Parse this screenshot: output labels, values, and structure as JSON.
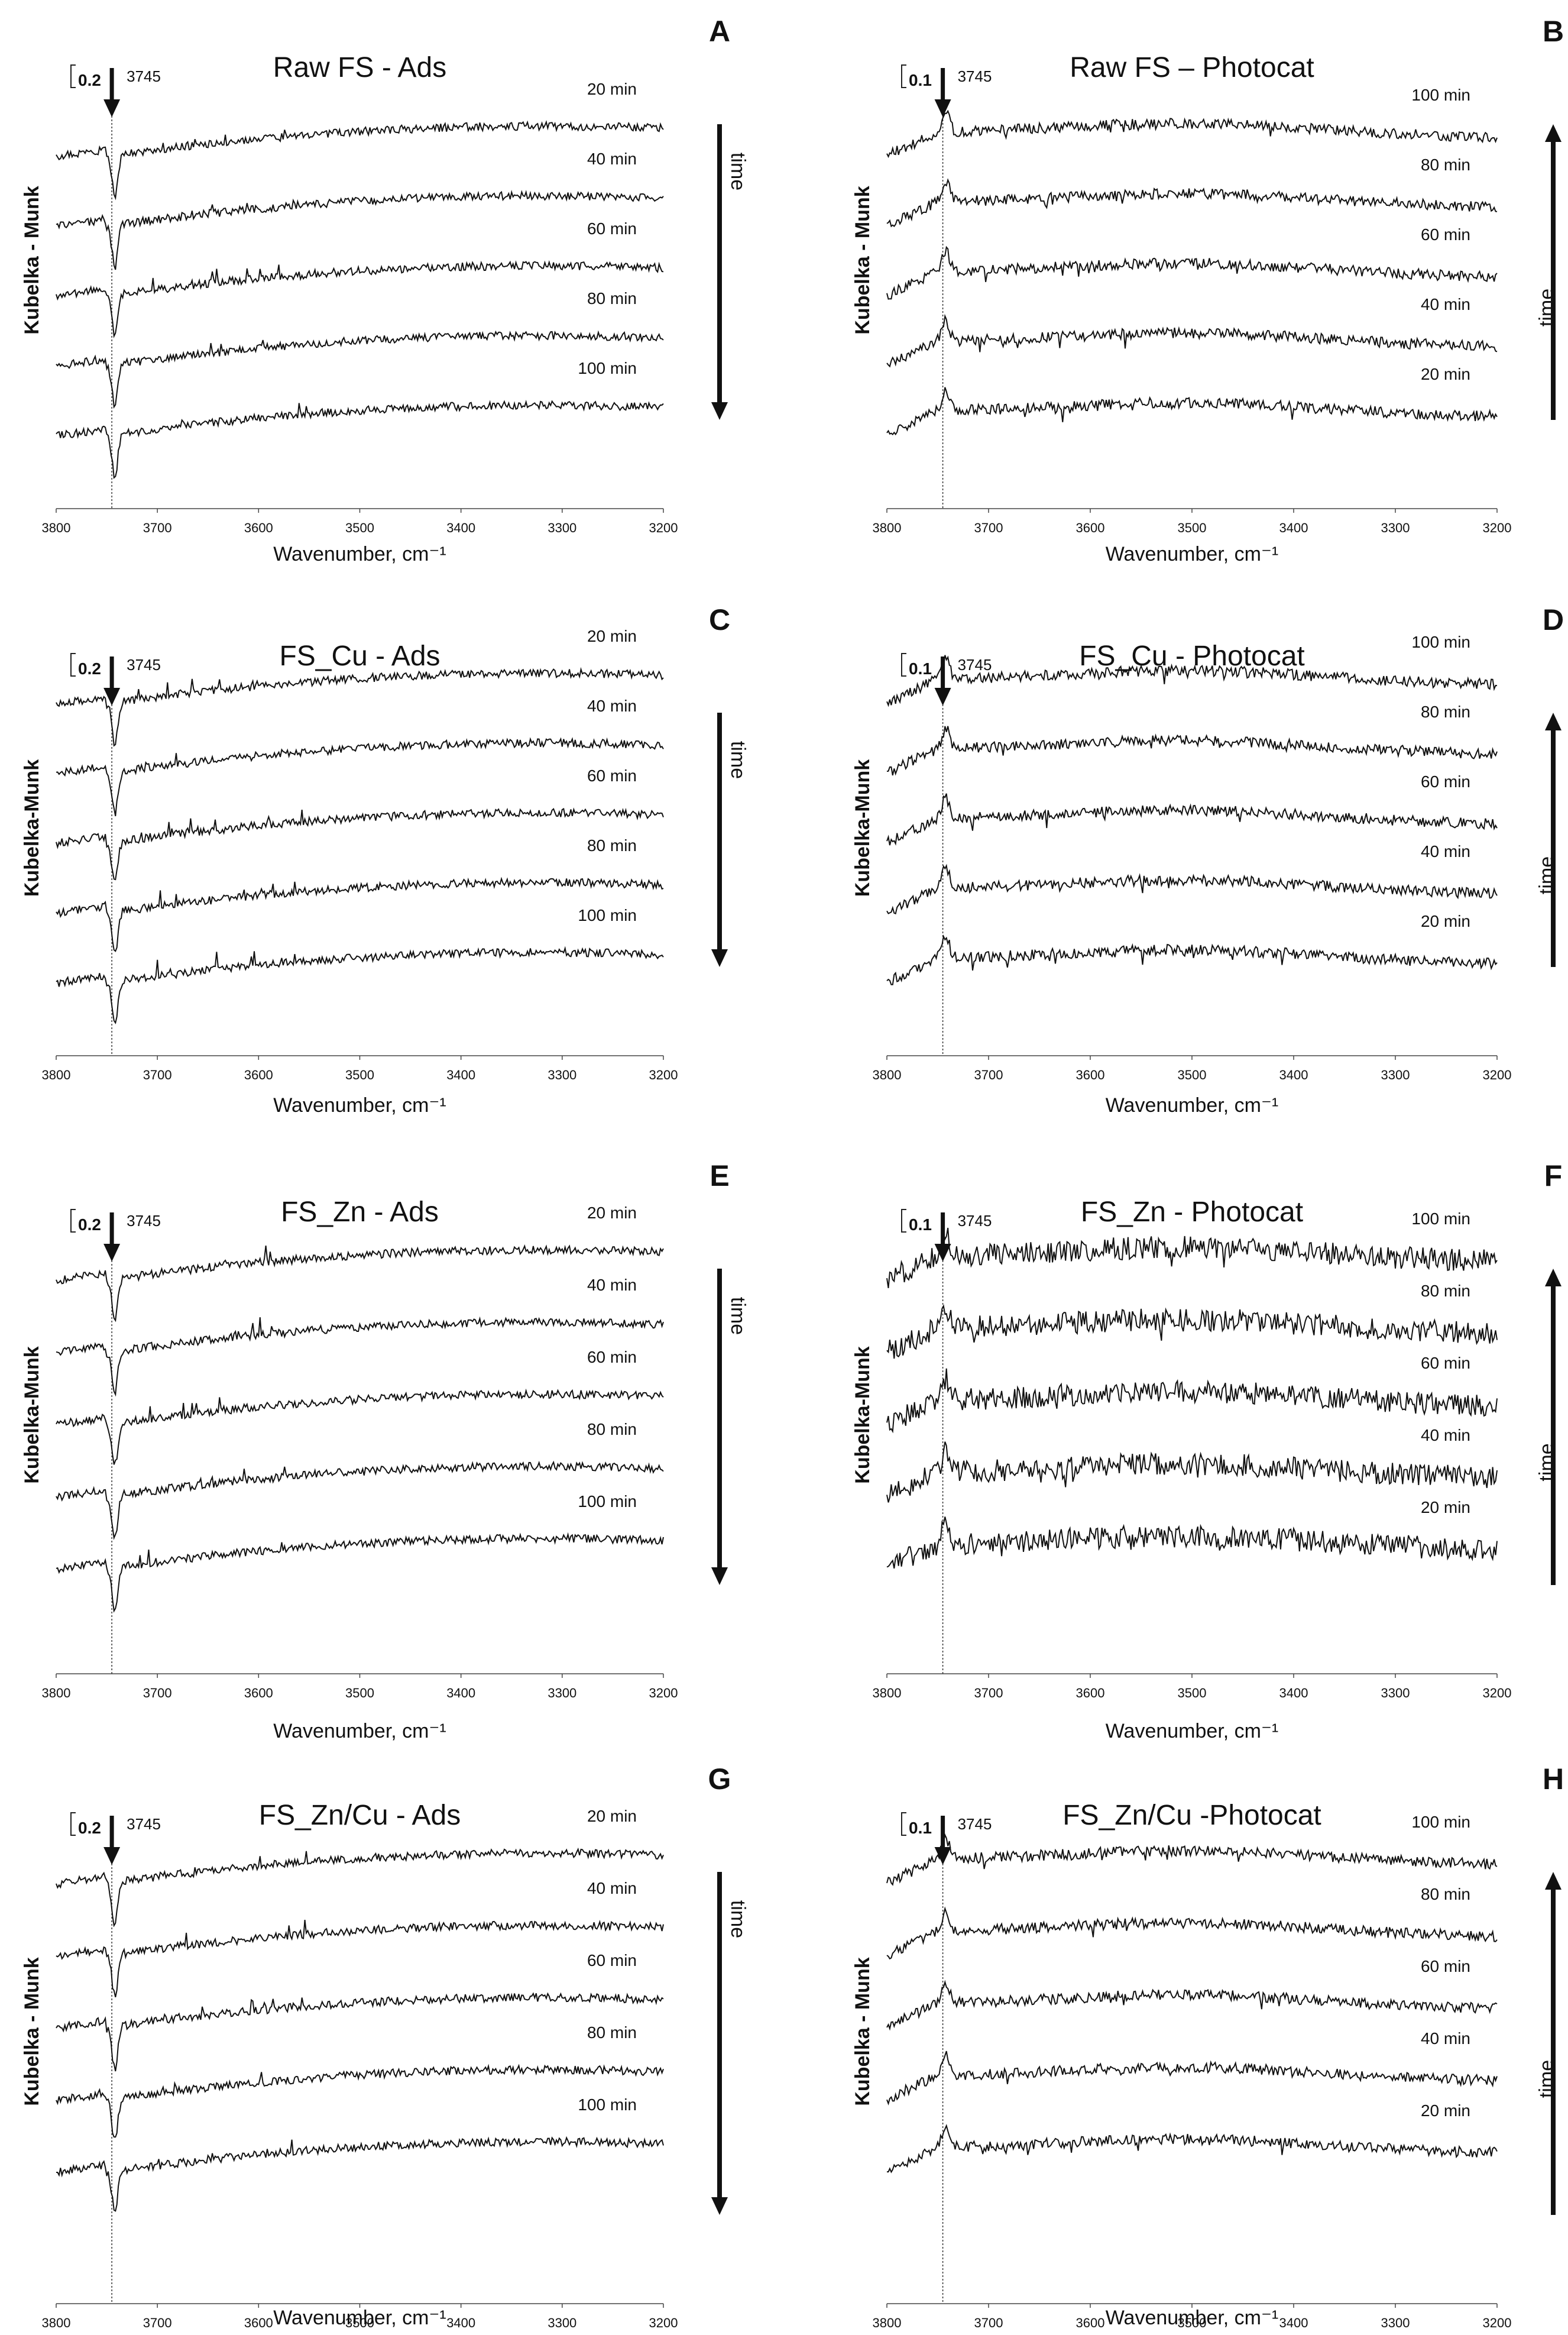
{
  "chart_data": [
    {
      "panel": "A",
      "type": "line",
      "title": "Raw FS - Ads",
      "xlabel": "Wavenumber, cm⁻¹",
      "ylabel": "Kubelka - Munk",
      "xlim": [
        3800,
        3200
      ],
      "xticks": [
        3800,
        3700,
        3600,
        3500,
        3400,
        3300,
        3200
      ],
      "scale_bar": "0.2",
      "peak_label": "3745",
      "peak_position": 3745,
      "time_label": "time",
      "time_direction": "down",
      "series": [
        {
          "name": "20 min",
          "time_min": 20
        },
        {
          "name": "40 min",
          "time_min": 40
        },
        {
          "name": "60 min",
          "time_min": 60
        },
        {
          "name": "80 min",
          "time_min": 80
        },
        {
          "name": "100 min",
          "time_min": 100
        }
      ]
    },
    {
      "panel": "B",
      "type": "line",
      "title": "Raw FS – Photocat",
      "xlabel": "Wavenumber, cm⁻¹",
      "ylabel": "Kubelka - Munk",
      "xlim": [
        3800,
        3200
      ],
      "xticks": [
        3800,
        3700,
        3600,
        3500,
        3400,
        3300,
        3200
      ],
      "scale_bar": "0.1",
      "peak_label": "3745",
      "peak_position": 3745,
      "time_label": "time",
      "time_direction": "up",
      "series": [
        {
          "name": "100 min",
          "time_min": 100
        },
        {
          "name": "80 min",
          "time_min": 80
        },
        {
          "name": "60 min",
          "time_min": 60
        },
        {
          "name": "40 min",
          "time_min": 40
        },
        {
          "name": "20 min",
          "time_min": 20
        }
      ]
    },
    {
      "panel": "C",
      "type": "line",
      "title": "FS_Cu - Ads",
      "xlabel": "Wavenumber, cm⁻¹",
      "ylabel": "Kubelka-Munk",
      "xlim": [
        3800,
        3200
      ],
      "xticks": [
        3800,
        3700,
        3600,
        3500,
        3400,
        3300,
        3200
      ],
      "scale_bar": "0.2",
      "peak_label": "3745",
      "peak_position": 3745,
      "time_label": "time",
      "time_direction": "down",
      "series": [
        {
          "name": "20 min",
          "time_min": 20
        },
        {
          "name": "40 min",
          "time_min": 40
        },
        {
          "name": "60 min",
          "time_min": 60
        },
        {
          "name": "80 min",
          "time_min": 80
        },
        {
          "name": "100 min",
          "time_min": 100
        }
      ]
    },
    {
      "panel": "D",
      "type": "line",
      "title": "FS_Cu - Photocat",
      "xlabel": "Wavenumber, cm⁻¹",
      "ylabel": "Kubelka-Munk",
      "xlim": [
        3800,
        3200
      ],
      "xticks": [
        3800,
        3700,
        3600,
        3500,
        3400,
        3300,
        3200
      ],
      "scale_bar": "0.1",
      "peak_label": "3745",
      "peak_position": 3745,
      "time_label": "time",
      "time_direction": "up",
      "series": [
        {
          "name": "100 min",
          "time_min": 100
        },
        {
          "name": "80 min",
          "time_min": 80
        },
        {
          "name": "60 min",
          "time_min": 60
        },
        {
          "name": "40 min",
          "time_min": 40
        },
        {
          "name": "20 min",
          "time_min": 20
        }
      ]
    },
    {
      "panel": "E",
      "type": "line",
      "title": "FS_Zn - Ads",
      "xlabel": "Wavenumber, cm⁻¹",
      "ylabel": "Kubelka-Munk",
      "xlim": [
        3800,
        3200
      ],
      "xticks": [
        3800,
        3700,
        3600,
        3500,
        3400,
        3300,
        3200
      ],
      "scale_bar": "0.2",
      "peak_label": "3745",
      "peak_position": 3745,
      "time_label": "time",
      "time_direction": "down",
      "series": [
        {
          "name": "20 min",
          "time_min": 20
        },
        {
          "name": "40 min",
          "time_min": 40
        },
        {
          "name": "60 min",
          "time_min": 60
        },
        {
          "name": "80 min",
          "time_min": 80
        },
        {
          "name": "100 min",
          "time_min": 100
        }
      ]
    },
    {
      "panel": "F",
      "type": "line",
      "title": "FS_Zn - Photocat",
      "xlabel": "Wavenumber, cm⁻¹",
      "ylabel": "Kubelka-Munk",
      "xlim": [
        3800,
        3200
      ],
      "xticks": [
        3800,
        3700,
        3600,
        3500,
        3400,
        3300,
        3200
      ],
      "scale_bar": "0.1",
      "peak_label": "3745",
      "peak_position": 3745,
      "time_label": "time",
      "time_direction": "up",
      "series": [
        {
          "name": "100 min",
          "time_min": 100
        },
        {
          "name": "80 min",
          "time_min": 80
        },
        {
          "name": "60 min",
          "time_min": 60
        },
        {
          "name": "40 min",
          "time_min": 40
        },
        {
          "name": "20 min",
          "time_min": 20
        }
      ]
    },
    {
      "panel": "G",
      "type": "line",
      "title": "FS_Zn/Cu - Ads",
      "xlabel": "Wavenumber, cm⁻¹",
      "ylabel": "Kubelka - Munk",
      "xlim": [
        3800,
        3200
      ],
      "xticks": [
        3800,
        3700,
        3600,
        3500,
        3400,
        3300,
        3200
      ],
      "scale_bar": "0.2",
      "peak_label": "3745",
      "peak_position": 3745,
      "time_label": "time",
      "time_direction": "down",
      "series": [
        {
          "name": "20 min",
          "time_min": 20
        },
        {
          "name": "40 min",
          "time_min": 40
        },
        {
          "name": "60 min",
          "time_min": 60
        },
        {
          "name": "80 min",
          "time_min": 80
        },
        {
          "name": "100 min",
          "time_min": 100
        }
      ]
    },
    {
      "panel": "H",
      "type": "line",
      "title": "FS_Zn/Cu -Photocat",
      "xlabel": "Wavenumber, cm⁻¹",
      "ylabel": "Kubelka - Munk",
      "xlim": [
        3800,
        3200
      ],
      "xticks": [
        3800,
        3700,
        3600,
        3500,
        3400,
        3300,
        3200
      ],
      "scale_bar": "0.1",
      "peak_label": "3745",
      "peak_position": 3745,
      "time_label": "time",
      "time_direction": "up",
      "series": [
        {
          "name": "100 min",
          "time_min": 100
        },
        {
          "name": "80 min",
          "time_min": 80
        },
        {
          "name": "60 min",
          "time_min": 60
        },
        {
          "name": "40 min",
          "time_min": 40
        },
        {
          "name": "20 min",
          "time_min": 20
        }
      ]
    }
  ]
}
